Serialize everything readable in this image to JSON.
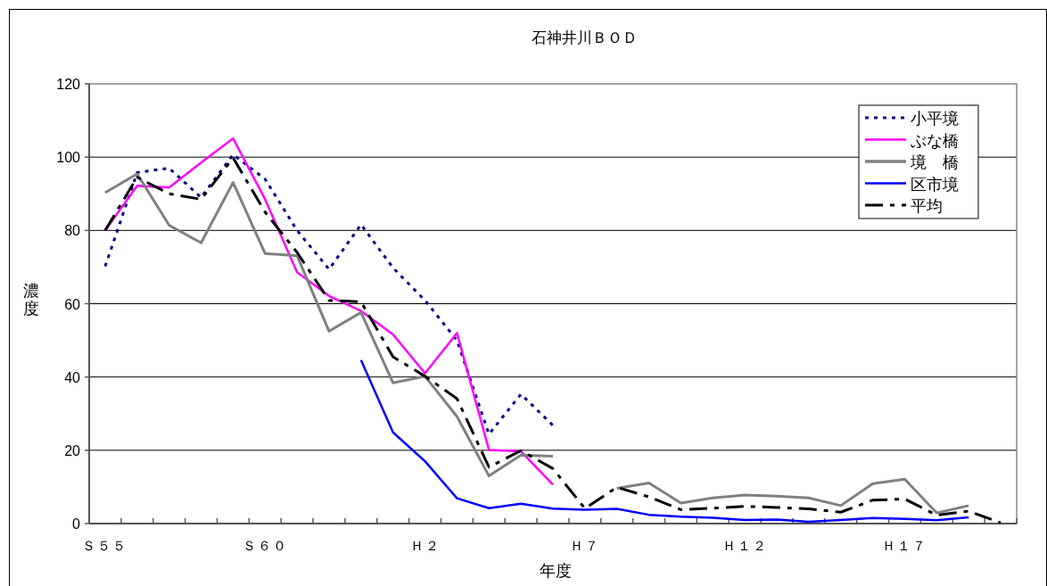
{
  "chart_data": {
    "type": "line",
    "title": "石神井川ＢＯＤ",
    "xlabel": "年度",
    "ylabel": "濃度",
    "categories": [
      "Ｓ５５",
      null,
      null,
      null,
      null,
      "Ｓ６０",
      null,
      null,
      null,
      null,
      "Ｈ２",
      null,
      null,
      null,
      null,
      "Ｈ７",
      null,
      null,
      null,
      null,
      "Ｈ１２",
      null,
      null,
      null,
      null,
      "Ｈ１７",
      null,
      null,
      null
    ],
    "ylim": [
      0,
      120
    ],
    "yticks": [
      0,
      20,
      40,
      60,
      80,
      100,
      120
    ],
    "grid": "y",
    "legend": "top right",
    "marker": "none",
    "series": [
      {
        "name": "小平境",
        "color": "#000080",
        "line_style": "dotted",
        "values": [
          70.2,
          95.8,
          97,
          89,
          100.7,
          94,
          80,
          69.4,
          81.6,
          69.8,
          60.9,
          50,
          24.4,
          35.3,
          26.8,
          null,
          null,
          null,
          null,
          null,
          null,
          null,
          null,
          null,
          null,
          null,
          null,
          null,
          null
        ]
      },
      {
        "name": "ぶな橋",
        "color": "#ff00ff",
        "line_style": "solid",
        "values": [
          80,
          92.2,
          91.7,
          98.5,
          105.1,
          88.5,
          68.6,
          62.1,
          58,
          51.6,
          41,
          52,
          20.1,
          19.7,
          10.6,
          null,
          null,
          null,
          null,
          null,
          null,
          null,
          null,
          null,
          null,
          null,
          null,
          null,
          null
        ]
      },
      {
        "name": "境　橋",
        "color": "#808080",
        "line_style": "solid",
        "values": [
          90.3,
          95.4,
          81.4,
          76.6,
          93.1,
          73.7,
          73.1,
          52.5,
          57.6,
          38.4,
          40.2,
          29.2,
          13,
          18.7,
          18.4,
          null,
          9.6,
          11.1,
          5.6,
          7,
          7.8,
          7.5,
          7,
          4.9,
          10.9,
          12.1,
          2.9,
          4.9,
          null
        ]
      },
      {
        "name": "区市境",
        "color": "#0000ff",
        "line_style": "solid",
        "values": [
          null,
          null,
          null,
          null,
          null,
          null,
          null,
          null,
          44.6,
          24.9,
          17,
          6.9,
          4.2,
          5.4,
          4.1,
          3.8,
          4,
          2.4,
          1.9,
          1.6,
          1,
          1.1,
          0.5,
          1,
          1.5,
          1.3,
          0.9,
          1.7,
          null
        ]
      },
      {
        "name": "平均",
        "color": "#000000",
        "line_style": "dashed",
        "values": [
          80,
          94.5,
          90,
          88.5,
          99.8,
          85,
          74,
          60.9,
          60.5,
          45.5,
          40.2,
          34.1,
          15.4,
          19.9,
          15,
          4.1,
          9.9,
          7.3,
          3.8,
          4.2,
          4.7,
          4.4,
          4,
          3.1,
          6.4,
          6.7,
          2.3,
          3.4,
          0.2
        ]
      }
    ]
  }
}
